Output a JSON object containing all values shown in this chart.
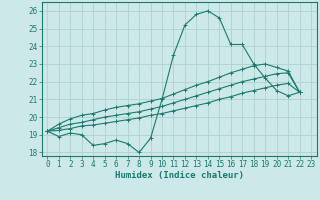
{
  "xlabel": "Humidex (Indice chaleur)",
  "bg_color": "#cce8e8",
  "grid_color": "#b0d0d0",
  "line_color": "#1a7a6e",
  "xlim": [
    -0.5,
    23.5
  ],
  "ylim": [
    17.8,
    26.5
  ],
  "xticks": [
    0,
    1,
    2,
    3,
    4,
    5,
    6,
    7,
    8,
    9,
    10,
    11,
    12,
    13,
    14,
    15,
    16,
    17,
    18,
    19,
    20,
    21,
    22,
    23
  ],
  "yticks": [
    18,
    19,
    20,
    21,
    22,
    23,
    24,
    25,
    26
  ],
  "series": [
    [
      19.2,
      18.9,
      19.1,
      19.0,
      18.4,
      18.5,
      18.7,
      18.5,
      18.0,
      18.8,
      21.0,
      23.5,
      25.2,
      25.8,
      26.0,
      25.6,
      24.1,
      24.1,
      23.0,
      22.2,
      21.5,
      21.2,
      21.4
    ],
    [
      19.2,
      19.25,
      19.35,
      19.5,
      19.55,
      19.65,
      19.75,
      19.85,
      19.95,
      20.1,
      20.2,
      20.35,
      20.5,
      20.65,
      20.8,
      21.0,
      21.15,
      21.35,
      21.5,
      21.65,
      21.8,
      21.9,
      21.4
    ],
    [
      19.2,
      19.4,
      19.6,
      19.7,
      19.85,
      20.0,
      20.1,
      20.2,
      20.3,
      20.45,
      20.6,
      20.8,
      21.0,
      21.2,
      21.4,
      21.6,
      21.8,
      22.0,
      22.15,
      22.3,
      22.45,
      22.5,
      21.4
    ],
    [
      19.2,
      19.6,
      19.9,
      20.1,
      20.2,
      20.4,
      20.55,
      20.65,
      20.75,
      20.9,
      21.05,
      21.3,
      21.55,
      21.8,
      22.0,
      22.25,
      22.5,
      22.7,
      22.9,
      23.0,
      22.8,
      22.6,
      21.4
    ]
  ]
}
